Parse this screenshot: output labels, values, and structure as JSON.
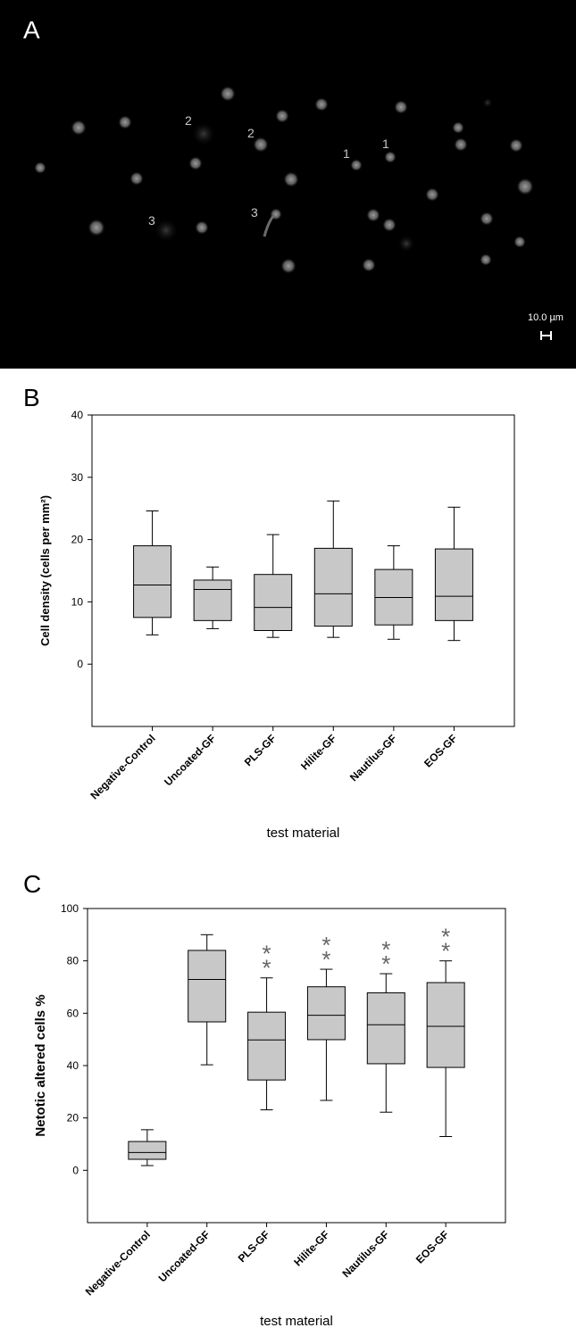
{
  "panel_a": {
    "letter": "A",
    "scale_bar_label": "10.0 µm",
    "cell_labels": [
      "2",
      "2",
      "1",
      "1",
      "3",
      "3"
    ]
  },
  "chart_data": [
    {
      "panel": "B",
      "type": "boxplot",
      "title": "",
      "xlabel": "test material",
      "ylabel": "Cell density (cells per mm²)",
      "ylim": [
        -10,
        40
      ],
      "yticks": [
        0,
        10,
        20,
        30,
        40
      ],
      "grid": false,
      "categories": [
        "Negative-Control",
        "Uncoated-GF",
        "PLS-GF",
        "Hilite-GF",
        "Nautilus-GF",
        "EOS-GF"
      ],
      "boxes": [
        {
          "min": 4.7,
          "q1": 7.5,
          "median": 12.7,
          "q3": 19.0,
          "max": 24.6
        },
        {
          "min": 5.7,
          "q1": 7.0,
          "median": 12.0,
          "q3": 13.5,
          "max": 15.6
        },
        {
          "min": 4.3,
          "q1": 5.4,
          "median": 9.1,
          "q3": 14.4,
          "max": 20.8
        },
        {
          "min": 4.3,
          "q1": 6.1,
          "median": 11.3,
          "q3": 18.6,
          "max": 26.2
        },
        {
          "min": 4.0,
          "q1": 6.3,
          "median": 10.7,
          "q3": 15.2,
          "max": 19.0
        },
        {
          "min": 3.8,
          "q1": 7.0,
          "median": 10.9,
          "q3": 18.5,
          "max": 25.2
        }
      ],
      "annotations": []
    },
    {
      "panel": "C",
      "type": "boxplot",
      "title": "",
      "xlabel": "test material",
      "ylabel": "Netotic altered cells %",
      "ylim": [
        -20,
        100
      ],
      "yticks": [
        0,
        20,
        40,
        60,
        80,
        100
      ],
      "grid": false,
      "categories": [
        "Negative-Control",
        "Uncoated-GF",
        "PLS-GF",
        "Hilite-GF",
        "Nautilus-GF",
        "EOS-GF"
      ],
      "boxes": [
        {
          "min": 1.8,
          "q1": 4.2,
          "median": 6.8,
          "q3": 11.0,
          "max": 15.5
        },
        {
          "min": 40.3,
          "q1": 56.7,
          "median": 72.9,
          "q3": 84.0,
          "max": 90.0
        },
        {
          "min": 23.1,
          "q1": 34.5,
          "median": 49.8,
          "q3": 60.4,
          "max": 73.5
        },
        {
          "min": 26.7,
          "q1": 49.9,
          "median": 59.2,
          "q3": 70.1,
          "max": 76.8
        },
        {
          "min": 22.2,
          "q1": 40.7,
          "median": 55.6,
          "q3": 67.8,
          "max": 75.1
        },
        {
          "min": 12.9,
          "q1": 39.3,
          "median": 55.0,
          "q3": 71.7,
          "max": 80.0
        }
      ],
      "annotations": [
        "",
        "",
        "**",
        "**",
        "**",
        "**"
      ]
    }
  ],
  "colors": {
    "box_fill": "#c8c8c8",
    "line": "#000000",
    "annotation": "#666666"
  }
}
